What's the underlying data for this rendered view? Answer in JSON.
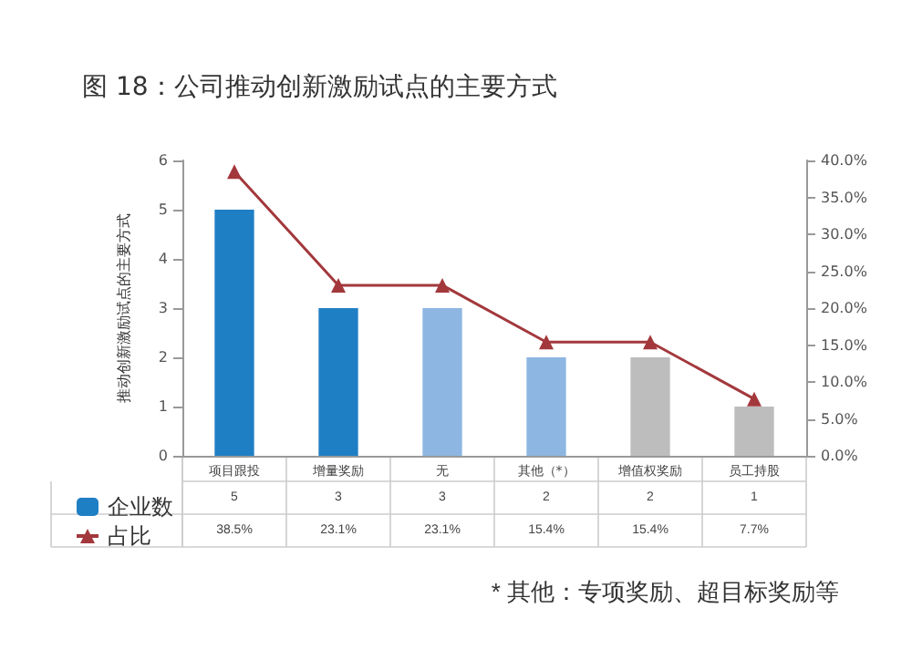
{
  "chart_data": {
    "type": "bar",
    "title": "图 18：公司推动创新激励试点的主要方式",
    "ylabel": "推动创新激励试点的主要方式",
    "categories": [
      "项目跟投",
      "增量奖励",
      "无",
      "其他（*）",
      "增值权奖励",
      "员工持股"
    ],
    "series": [
      {
        "name": "企业数",
        "colors": [
          "#1f7fc4",
          "#1f7fc4",
          "#8db6e2",
          "#8db6e2",
          "#bdbdbd",
          "#bdbdbd"
        ],
        "values": [
          5,
          3,
          3,
          2,
          2,
          1
        ],
        "value_labels": [
          "5",
          "3",
          "3",
          "2",
          "2",
          "1"
        ]
      },
      {
        "name": "占比",
        "type": "line",
        "axis": "y2",
        "color": "#a3383c",
        "marker": "triangle",
        "values": [
          38.5,
          23.1,
          23.1,
          15.4,
          15.4,
          7.7
        ],
        "value_labels": [
          "38.5%",
          "23.1%",
          "23.1%",
          "15.4%",
          "15.4%",
          "7.7%"
        ]
      }
    ],
    "ylim": [
      0,
      6
    ],
    "yticks": [
      0,
      1,
      2,
      3,
      4,
      5,
      6
    ],
    "y2lim": [
      0,
      40
    ],
    "y2ticks": [
      {
        "value": 0,
        "label": "0.0%"
      },
      {
        "value": 5,
        "label": "5.0%"
      },
      {
        "value": 10,
        "label": "10.0%"
      },
      {
        "value": 15,
        "label": "15.0%"
      },
      {
        "value": 20,
        "label": "20.0%"
      },
      {
        "value": 25,
        "label": "25.0%"
      },
      {
        "value": 30,
        "label": "30.0%"
      },
      {
        "value": 35,
        "label": "35.0%"
      },
      {
        "value": 40,
        "label": "40.0%"
      }
    ],
    "grid": false,
    "legend": "bottom left",
    "annotations": [
      "* 其他：专项奖励、超目标奖励等"
    ]
  }
}
